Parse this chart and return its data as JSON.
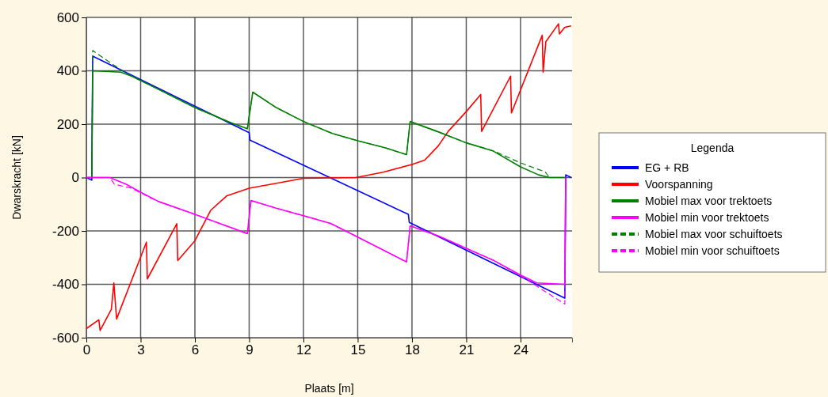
{
  "chart_data": {
    "type": "line",
    "xlabel": "Plaats [m]",
    "ylabel": "Dwarskracht [kN]",
    "legend_title": "Legenda",
    "xlim": [
      0,
      26.85
    ],
    "ylim": [
      -600,
      600
    ],
    "xticks": [
      0,
      3,
      6,
      9,
      12,
      15,
      18,
      21,
      24
    ],
    "yticks": [
      -600,
      -400,
      -200,
      0,
      200,
      400,
      600
    ],
    "grid": true,
    "legend": "right",
    "series": [
      {
        "name": "EG + RB",
        "color": "#0000ff",
        "line_style": "solid",
        "x": [
          0,
          0.3,
          0.35,
          9,
          9.05,
          17.8,
          17.85,
          26.45,
          26.5,
          26.8
        ],
        "values": [
          0,
          -10,
          455,
          168,
          140,
          -138,
          -168,
          -452,
          10,
          0
        ]
      },
      {
        "name": "Voorspanning",
        "color": "#ff0000",
        "line_style": "solid",
        "x": [
          0,
          0.69,
          0.76,
          1.38,
          1.52,
          1.67,
          3.32,
          3.37,
          5.0,
          5.05,
          6,
          6.87,
          7.75,
          9,
          12,
          14.9,
          16.4,
          18,
          18.7,
          19.45,
          20,
          21,
          21.8,
          21.85,
          23.45,
          23.5,
          25.2,
          25.25,
          25.4,
          26.1,
          26.15,
          26.45,
          26.8
        ],
        "values": [
          -566,
          -533,
          -573,
          -494,
          -395,
          -530,
          -242,
          -380,
          -173,
          -311,
          -237,
          -123,
          -69,
          -40,
          -3,
          0,
          20,
          49,
          65,
          118,
          173,
          247,
          311,
          173,
          380,
          242,
          533,
          395,
          509,
          576,
          538,
          563,
          568
        ]
      },
      {
        "name": "Mobiel max voor trektoets",
        "color": "#008000",
        "line_style": "solid",
        "x": [
          0,
          0.3,
          0.35,
          1.9,
          2.5,
          4,
          6,
          8,
          8.9,
          9.2,
          10.5,
          12,
          13.6,
          15,
          16.5,
          17.7,
          17.9,
          19.5,
          21,
          22.5,
          24,
          25,
          25.6,
          26.45
        ],
        "values": [
          0,
          0,
          400,
          395,
          380,
          330,
          262,
          205,
          183,
          320,
          262,
          210,
          165,
          138,
          112,
          86,
          210,
          170,
          130,
          99,
          40,
          10,
          0,
          0
        ]
      },
      {
        "name": "Mobiel min voor trektoets",
        "color": "#ff00ff",
        "line_style": "solid",
        "x": [
          0,
          1.3,
          2.2,
          3,
          4,
          6,
          8.9,
          9.1,
          10.5,
          12,
          13.5,
          15,
          17.7,
          17.9,
          19.5,
          21,
          22.5,
          24,
          24.9,
          26.45,
          26.5
        ],
        "values": [
          0,
          0,
          -25,
          -55,
          -90,
          -138,
          -210,
          -86,
          -115,
          -143,
          -172,
          -223,
          -316,
          -181,
          -220,
          -265,
          -310,
          -365,
          -395,
          -400,
          0
        ]
      },
      {
        "name": "Mobiel max voor schuiftoets",
        "color": "#008000",
        "line_style": "dashed",
        "x": [
          0,
          0.3,
          0.35,
          1,
          2,
          2.5,
          4,
          6,
          8,
          8.9,
          9.2,
          10.5,
          12,
          13.6,
          15,
          16.5,
          17.7,
          17.9,
          19.5,
          21,
          22.5,
          24,
          25,
          25.35,
          25.6,
          26.45
        ],
        "values": [
          0,
          0,
          476,
          445,
          400,
          380,
          330,
          262,
          205,
          183,
          320,
          262,
          210,
          165,
          138,
          112,
          86,
          210,
          170,
          130,
          100,
          55,
          30,
          22,
          0,
          0
        ]
      },
      {
        "name": "Mobiel min voor schuiftoets",
        "color": "#ff00ff",
        "line_style": "dashed",
        "x": [
          0,
          1.3,
          1.55,
          2.5,
          3.5,
          4,
          6,
          8.9,
          9.1,
          10.5,
          12,
          13.5,
          15,
          17.7,
          17.9,
          19.5,
          21,
          22.5,
          24,
          26.45,
          26.5
        ],
        "values": [
          0,
          0,
          -25,
          -40,
          -75,
          -90,
          -138,
          -210,
          -86,
          -115,
          -143,
          -172,
          -223,
          -316,
          -181,
          -220,
          -265,
          -310,
          -368,
          -474,
          0
        ]
      }
    ]
  }
}
